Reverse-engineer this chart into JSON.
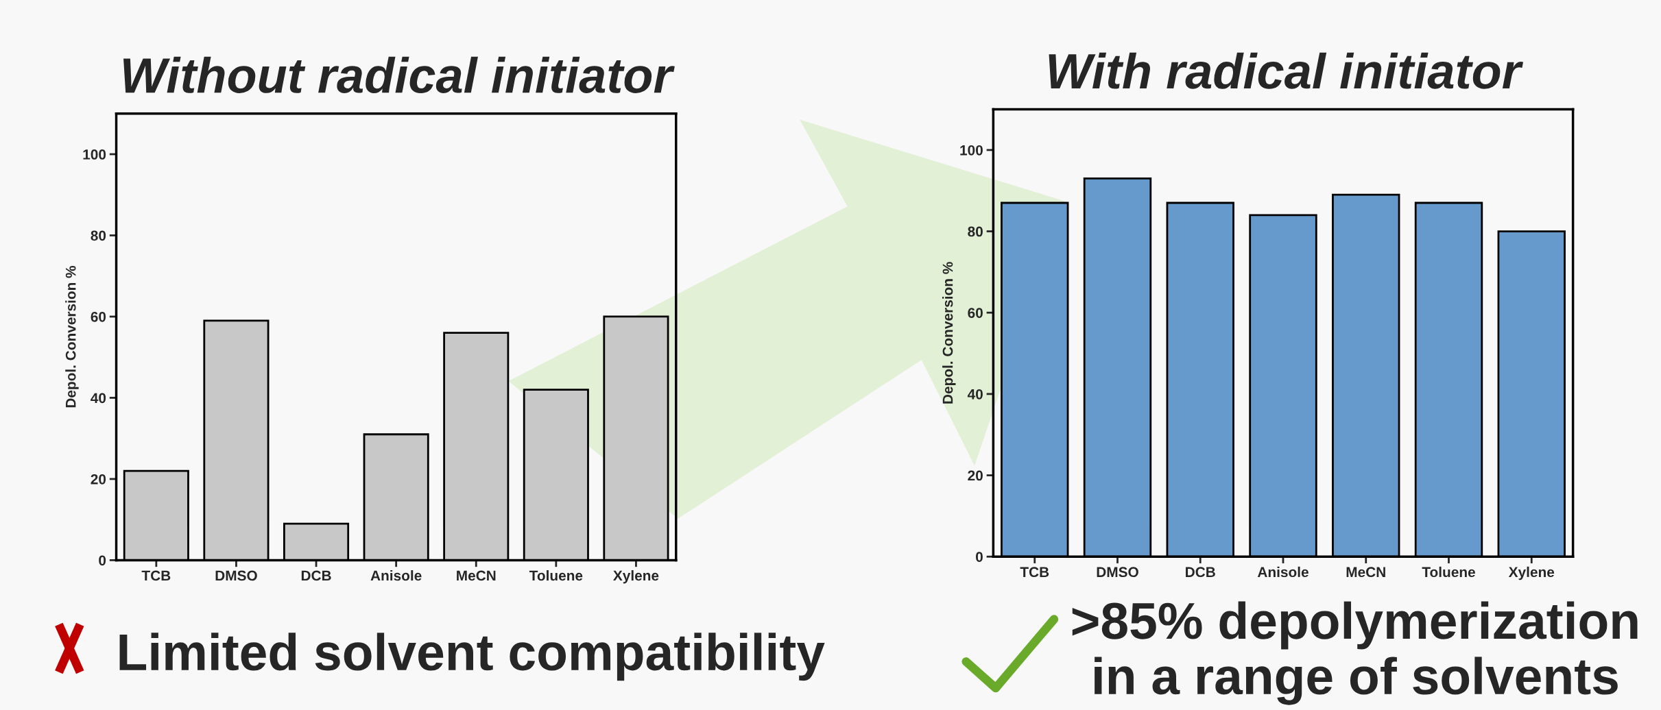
{
  "chart_data": [
    {
      "type": "bar",
      "title": "Without radical initiator",
      "ylabel": "Depol. Conversion %",
      "categories": [
        "TCB",
        "DMSO",
        "DCB",
        "Anisole",
        "MeCN",
        "Toluene",
        "Xylene"
      ],
      "values": [
        22,
        59,
        9,
        31,
        56,
        42,
        60
      ],
      "color": "#c8c8c8",
      "ylim": [
        0,
        110
      ],
      "yticks": [
        0,
        20,
        40,
        60,
        80,
        100
      ],
      "annotations": [
        "Limited solvent compatibility"
      ]
    },
    {
      "type": "bar",
      "title": "With radical initiator",
      "ylabel": "Depol. Conversion %",
      "categories": [
        "TCB",
        "DMSO",
        "DCB",
        "Anisole",
        "MeCN",
        "Toluene",
        "Xylene"
      ],
      "values": [
        87,
        93,
        87,
        84,
        89,
        87,
        80
      ],
      "color": "#6699cc",
      "ylim": [
        0,
        110
      ],
      "yticks": [
        0,
        20,
        40,
        60,
        80,
        100
      ],
      "annotations": [
        ">85% depolymerization in a range of solvents"
      ]
    }
  ]
}
